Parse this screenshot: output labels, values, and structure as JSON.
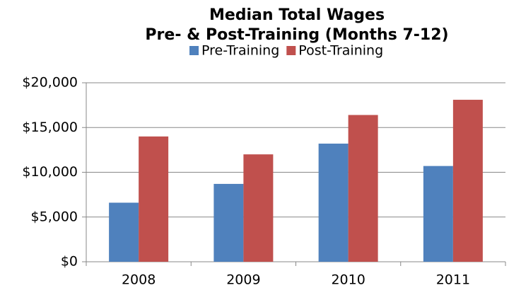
{
  "chart_data": {
    "type": "bar",
    "title": "Median Total Wages",
    "subtitle": "Pre- & Post-Training (Months 7-12)",
    "categories": [
      "2008",
      "2009",
      "2010",
      "2011"
    ],
    "series": [
      {
        "name": "Pre-Training",
        "color": "#4f81bd",
        "values": [
          6600,
          8700,
          13200,
          10700
        ]
      },
      {
        "name": "Post-Training",
        "color": "#c0504d",
        "values": [
          14000,
          12000,
          16400,
          18100
        ]
      }
    ],
    "ylim": [
      0,
      20000
    ],
    "yticks": [
      {
        "value": 0,
        "label": "$0"
      },
      {
        "value": 5000,
        "label": "$5,000"
      },
      {
        "value": 10000,
        "label": "$10,000"
      },
      {
        "value": 15000,
        "label": "$15,000"
      },
      {
        "value": 20000,
        "label": "$20,000"
      }
    ],
    "grid": true,
    "legend": "top"
  }
}
